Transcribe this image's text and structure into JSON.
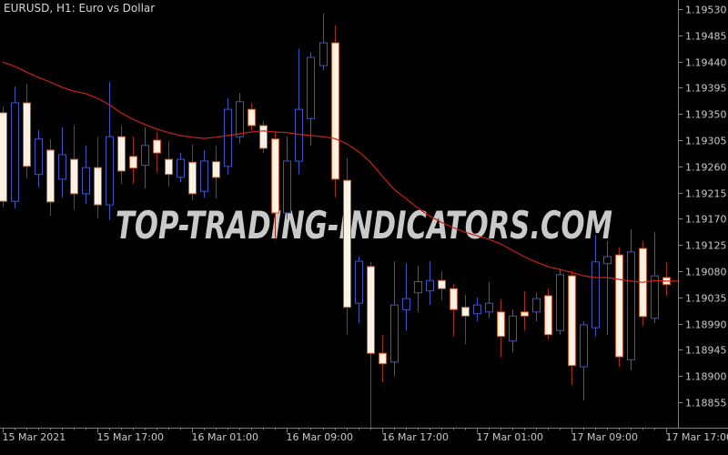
{
  "header": {
    "title": "EURUSD, H1: Euro vs Dollar"
  },
  "watermark": {
    "text": "TOP-TRADING-INDICATORS.COM"
  },
  "colors": {
    "background": "#000000",
    "bull_blue": "#3F55C4",
    "bear_body_fill": "#FCF1E2",
    "bear_body_border": "#C2572A",
    "bear_wick_red": "#A52D12",
    "ma_line_red": "#C9221A",
    "watermark_pink": "#B7215C",
    "axis_text": "#C9C9C9",
    "axis_line": "#7F7F7F"
  },
  "chart_data": {
    "type": "candlestick",
    "symbol": "EURUSD",
    "timeframe": "H1",
    "title": "EURUSD, H1: Euro vs Dollar",
    "grid": false,
    "legend": false,
    "y_axis_side": "right",
    "ylim": [
      1.18855,
      1.1953
    ],
    "y_axis_labels": [
      "1.19530",
      "1.19485",
      "1.19440",
      "1.19395",
      "1.19350",
      "1.19305",
      "1.19260",
      "1.19215",
      "1.19170",
      "1.19125",
      "1.19080",
      "1.19035",
      "1.18990",
      "1.18945",
      "1.18900",
      "1.18855"
    ],
    "x_axis_labels": [
      "15 Mar 2021",
      "15 Mar 17:00",
      "16 Mar 01:00",
      "16 Mar 09:00",
      "16 Mar 17:00",
      "17 Mar 01:00",
      "17 Mar 09:00",
      "17 Mar 17:00"
    ],
    "bars_per_x_label": 8,
    "candles_ohlc": [
      [
        1.19352,
        1.19362,
        1.1919,
        1.192
      ],
      [
        1.192,
        1.19397,
        1.19188,
        1.19369
      ],
      [
        1.19369,
        1.19402,
        1.1924,
        1.1926
      ],
      [
        1.19246,
        1.19322,
        1.19224,
        1.19307
      ],
      [
        1.19288,
        1.19307,
        1.19175,
        1.19199
      ],
      [
        1.19238,
        1.19327,
        1.19207,
        1.1928
      ],
      [
        1.19272,
        1.1933,
        1.19186,
        1.19213
      ],
      [
        1.19213,
        1.19296,
        1.19196,
        1.19258
      ],
      [
        1.19258,
        1.19311,
        1.1917,
        1.19194
      ],
      [
        1.19194,
        1.19405,
        1.19168,
        1.19311
      ],
      [
        1.19311,
        1.1933,
        1.1923,
        1.19252
      ],
      [
        1.19277,
        1.19311,
        1.1923,
        1.19257
      ],
      [
        1.19262,
        1.19327,
        1.19222,
        1.19296
      ],
      [
        1.19305,
        1.19319,
        1.19249,
        1.19283
      ],
      [
        1.19272,
        1.19303,
        1.19225,
        1.19246
      ],
      [
        1.19241,
        1.19283,
        1.19233,
        1.19272
      ],
      [
        1.19267,
        1.19298,
        1.19202,
        1.19213
      ],
      [
        1.19217,
        1.19288,
        1.19206,
        1.19269
      ],
      [
        1.19268,
        1.19295,
        1.19205,
        1.19241
      ],
      [
        1.1926,
        1.19377,
        1.19246,
        1.19358
      ],
      [
        1.19311,
        1.19386,
        1.193,
        1.19371
      ],
      [
        1.19358,
        1.19369,
        1.19322,
        1.1933
      ],
      [
        1.1933,
        1.19338,
        1.19283,
        1.19291
      ],
      [
        1.19307,
        1.19319,
        1.19135,
        1.1918
      ],
      [
        1.1918,
        1.19311,
        1.19169,
        1.19269
      ],
      [
        1.19269,
        1.19462,
        1.19246,
        1.19358
      ],
      [
        1.19342,
        1.19456,
        1.19296,
        1.19447
      ],
      [
        1.19433,
        1.19522,
        1.19425,
        1.19472
      ],
      [
        1.19472,
        1.19502,
        1.19207,
        1.19238
      ],
      [
        1.19236,
        1.19275,
        1.18971,
        1.19018
      ],
      [
        1.19025,
        1.19105,
        1.18991,
        1.19097
      ],
      [
        1.19088,
        1.19096,
        1.18811,
        1.18939
      ],
      [
        1.18939,
        1.1897,
        1.18889,
        1.18921
      ],
      [
        1.18924,
        1.19097,
        1.189,
        1.19022
      ],
      [
        1.19014,
        1.19093,
        1.18978,
        1.19033
      ],
      [
        1.19043,
        1.19089,
        1.1901,
        1.19062
      ],
      [
        1.19046,
        1.19097,
        1.19022,
        1.19064
      ],
      [
        1.19064,
        1.1908,
        1.1903,
        1.1905
      ],
      [
        1.1905,
        1.19058,
        1.18968,
        1.19014
      ],
      [
        1.19018,
        1.1904,
        1.18955,
        1.19003
      ],
      [
        1.19007,
        1.19035,
        1.18994,
        1.19022
      ],
      [
        1.1901,
        1.19061,
        1.18999,
        1.19025
      ],
      [
        1.1901,
        1.19032,
        1.18932,
        1.18968
      ],
      [
        1.1896,
        1.19014,
        1.18941,
        1.19003
      ],
      [
        1.1901,
        1.19046,
        1.18978,
        1.19003
      ],
      [
        1.1901,
        1.19043,
        1.18994,
        1.19033
      ],
      [
        1.19038,
        1.1905,
        1.18963,
        1.18971
      ],
      [
        1.18978,
        1.19085,
        1.18971,
        1.19074
      ],
      [
        1.19072,
        1.1908,
        1.18885,
        1.18918
      ],
      [
        1.18916,
        1.18994,
        1.18858,
        1.18988
      ],
      [
        1.18983,
        1.19142,
        1.18968,
        1.19096
      ],
      [
        1.19093,
        1.19132,
        1.18971,
        1.19105
      ],
      [
        1.19108,
        1.19121,
        1.18916,
        1.18933
      ],
      [
        1.18928,
        1.19152,
        1.1891,
        1.19113
      ],
      [
        1.19119,
        1.19132,
        1.18986,
        1.19002
      ],
      [
        1.18999,
        1.19147,
        1.18991,
        1.19072
      ],
      [
        1.19069,
        1.19096,
        1.19038,
        1.19057
      ]
    ],
    "series": [
      {
        "name": "moving-average",
        "type": "line",
        "color": "#C9221A",
        "values": [
          1.19439,
          1.19432,
          1.19422,
          1.19413,
          1.19405,
          1.19396,
          1.19389,
          1.19385,
          1.19377,
          1.19366,
          1.19352,
          1.19341,
          1.19332,
          1.19324,
          1.19318,
          1.19313,
          1.1931,
          1.19308,
          1.1931,
          1.19313,
          1.19316,
          1.19319,
          1.19321,
          1.19319,
          1.19318,
          1.19315,
          1.19313,
          1.19311,
          1.19308,
          1.19299,
          1.19286,
          1.19268,
          1.19244,
          1.19221,
          1.19205,
          1.19189,
          1.19175,
          1.19164,
          1.19155,
          1.19147,
          1.19141,
          1.19135,
          1.19127,
          1.19116,
          1.19105,
          1.19096,
          1.19088,
          1.19083,
          1.19078,
          1.19072,
          1.19069,
          1.19069,
          1.19066,
          1.19063,
          1.19061,
          1.19064,
          1.19063
        ]
      }
    ]
  }
}
